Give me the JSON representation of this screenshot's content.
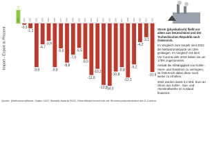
{
  "chart_data": {
    "type": "bar",
    "y_label": "Import - Export in Prozent",
    "categories": [
      "2000",
      "2001",
      "2002",
      "2003",
      "2004",
      "2005",
      "2006",
      "2007",
      "2008",
      "2009",
      "2010",
      "2011",
      "2012",
      "2013",
      "2014",
      "2015",
      "2016",
      "2017",
      "2018",
      "2019",
      "2020",
      "2021",
      "2022"
    ],
    "values": [
      3,
      -0.3,
      -1.1,
      -9.8,
      -4.7,
      -3.9,
      -9.8,
      -5.6,
      -8.8,
      -7.0,
      -5.5,
      -8.0,
      -11.6,
      -10.2,
      -13.8,
      -14.0,
      -10.8,
      -9.8,
      -12.1,
      -9.2,
      -4.2,
      -3.1,
      -10.9
    ],
    "value_labels": [
      "3",
      "-0,3",
      "-1,1",
      "-9,8",
      "-4,7",
      "-3,9",
      "-9,8",
      "-5,6",
      "-8,8",
      "-7,0",
      "-5,5",
      "-8,0",
      "-11,6",
      "-10,2",
      "-13,8",
      "-14,0",
      "-10,8",
      "-9,8",
      "-12,1",
      "-9,2",
      "-4,2",
      "-3,1",
      "-10,9"
    ],
    "colors": [
      "#8dc63f",
      "#c0392b",
      "#c0392b",
      "#c0392b",
      "#c0392b",
      "#c0392b",
      "#c0392b",
      "#c0392b",
      "#c0392b",
      "#c0392b",
      "#c0392b",
      "#c0392b",
      "#c0392b",
      "#c0392b",
      "#c0392b",
      "#c0392b",
      "#c0392b",
      "#c0392b",
      "#c0392b",
      "#c0392b",
      "#c0392b",
      "#c0392b",
      "#c0392b"
    ],
    "ylim": [
      -16,
      4
    ]
  },
  "side_text": {
    "heading": "Strom (physikalisch) fließt vor allem aus Deutschland und der Tschechischen Republik nach Österreich.",
    "paragraphs": [
      "Im Vergleich zum Vorjahr sind 2022 die Nettostromimporte um 15% gestiegen. Im Vergleich mit dem Vor-Corona-Jahr 2019 haben sie um 178% zugenommen.",
      "Anstatt die Abhängigkeit von Kohle-, Atom- und Gasstrom zu verringern, ist Österreich dabei diese noch weiter zu erhöhen.",
      "2022 wurden damit 3,2 Mrd. Euro an Strom aus Kohle-, Gas- und Atomkraftwerke im Ausland finanziert."
    ]
  },
  "source": "Quelle: (Nettostrom)flüsse: Daten 2022 Statistik Austria 2022: Stromflüsse berechnet mit Stromimportpotentialen der E-Control"
}
